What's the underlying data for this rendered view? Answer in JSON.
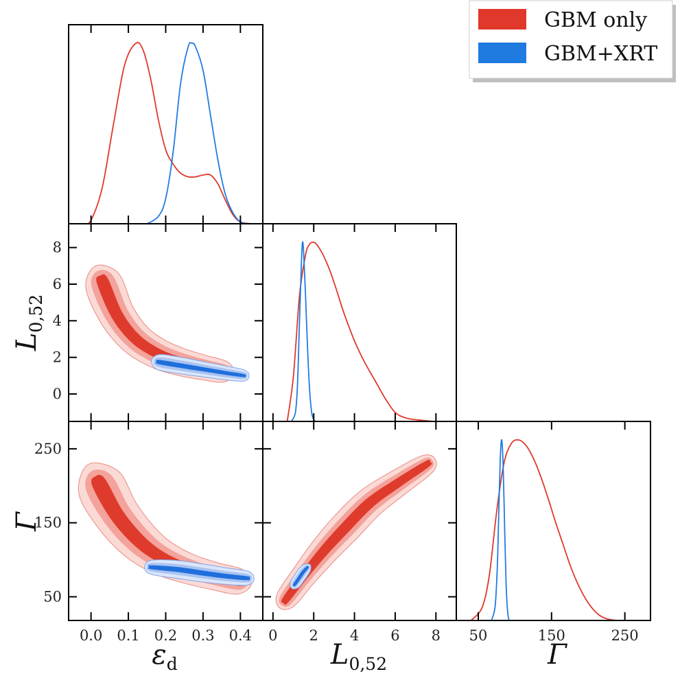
{
  "colors": {
    "gbm_only": "#e0382a",
    "gbm_xrt": "#1f7be0",
    "gbm_fill_1": "#fbdad6",
    "gbm_fill_2": "#f3a39b",
    "gbm_fill_3": "#df3b2c",
    "xrt_fill_1": "#dbe6fb",
    "xrt_fill_2": "#a9c3f2",
    "xrt_fill_3": "#1f6fdc"
  },
  "legend": {
    "placement": "top-right",
    "entries": [
      {
        "label": "GBM only",
        "color": "#e0382a"
      },
      {
        "label": "GBM+XRT",
        "color": "#1f7be0"
      }
    ]
  },
  "axes": {
    "eps": {
      "label": "ε",
      "sub": "d",
      "range": [
        -0.06,
        0.46
      ],
      "ticks": [
        0.0,
        0.1,
        0.2,
        0.3,
        0.4
      ],
      "tick_labels": [
        "0.0",
        "0.1",
        "0.2",
        "0.3",
        "0.4"
      ]
    },
    "L": {
      "label": "L",
      "sub": "0,52",
      "range_x": [
        -0.5,
        9.0
      ],
      "range_y": [
        -1.5,
        9.3
      ],
      "ticks": [
        0,
        2,
        4,
        6,
        8
      ],
      "tick_labels": [
        "0",
        "2",
        "4",
        "6",
        "8"
      ]
    },
    "Gamma": {
      "label": "Γ",
      "range_x": [
        20,
        285
      ],
      "range_y": [
        18,
        287
      ],
      "ticks_x": [
        50,
        150,
        250
      ],
      "tick_labels_x": [
        "50",
        "150",
        "250"
      ],
      "ticks_y": [
        50,
        150,
        250
      ],
      "tick_labels_y": [
        "50",
        "150",
        "250"
      ]
    }
  },
  "chart_data": {
    "type": "corner",
    "parameters": [
      "ε_d",
      "L_0,52",
      "Γ"
    ],
    "series": [
      {
        "name": "GBM only",
        "marginals": {
          "eps": {
            "x": [
              -0.02,
              0.0,
              0.03,
              0.06,
              0.09,
              0.12,
              0.14,
              0.16,
              0.18,
              0.2,
              0.22,
              0.24,
              0.26,
              0.28,
              0.3,
              0.32,
              0.34,
              0.36,
              0.38,
              0.4,
              0.43
            ],
            "y": [
              0.0,
              0.02,
              0.2,
              0.55,
              0.88,
              1.0,
              0.96,
              0.8,
              0.58,
              0.41,
              0.33,
              0.28,
              0.26,
              0.26,
              0.27,
              0.27,
              0.22,
              0.13,
              0.05,
              0.01,
              0.0
            ]
          },
          "L": {
            "x": [
              0.7,
              1.0,
              1.3,
              1.6,
              1.8,
              2.0,
              2.2,
              2.5,
              2.8,
              3.1,
              3.5,
              4.0,
              4.5,
              5.0,
              5.5,
              6.0,
              6.5,
              7.0,
              7.9
            ],
            "y": [
              0.0,
              0.25,
              0.7,
              0.93,
              0.99,
              1.0,
              0.98,
              0.92,
              0.84,
              0.74,
              0.6,
              0.45,
              0.33,
              0.23,
              0.13,
              0.05,
              0.02,
              0.01,
              0.0
            ]
          },
          "Gamma": {
            "x": [
              40,
              55,
              65,
              75,
              85,
              95,
              105,
              115,
              125,
              135,
              145,
              155,
              165,
              175,
              185,
              195,
              205,
              215,
              225,
              240,
              258
            ],
            "y": [
              0.0,
              0.07,
              0.25,
              0.6,
              0.87,
              0.98,
              1.0,
              0.97,
              0.9,
              0.8,
              0.68,
              0.55,
              0.43,
              0.31,
              0.21,
              0.13,
              0.07,
              0.03,
              0.01,
              0.0,
              0.0
            ]
          }
        }
      },
      {
        "name": "GBM+XRT",
        "marginals": {
          "eps": {
            "x": [
              0.15,
              0.18,
              0.2,
              0.22,
              0.24,
              0.26,
              0.27,
              0.28,
              0.3,
              0.32,
              0.34,
              0.36,
              0.38,
              0.4,
              0.42
            ],
            "y": [
              0.0,
              0.04,
              0.14,
              0.4,
              0.78,
              0.98,
              1.0,
              0.98,
              0.85,
              0.6,
              0.35,
              0.16,
              0.06,
              0.01,
              0.0
            ]
          },
          "L": {
            "x": [
              0.9,
              1.1,
              1.2,
              1.3,
              1.4,
              1.45,
              1.5,
              1.6,
              1.7,
              1.8,
              1.9,
              2.0,
              2.1
            ],
            "y": [
              0.0,
              0.05,
              0.2,
              0.55,
              0.9,
              1.0,
              0.95,
              0.7,
              0.4,
              0.17,
              0.05,
              0.01,
              0.0
            ]
          },
          "Gamma": {
            "x": [
              68,
              73,
              76,
              78,
              80,
              82,
              84,
              86,
              88,
              90,
              92
            ],
            "y": [
              0.0,
              0.08,
              0.3,
              0.6,
              0.9,
              1.0,
              0.85,
              0.5,
              0.2,
              0.05,
              0.0
            ]
          }
        }
      }
    ]
  }
}
